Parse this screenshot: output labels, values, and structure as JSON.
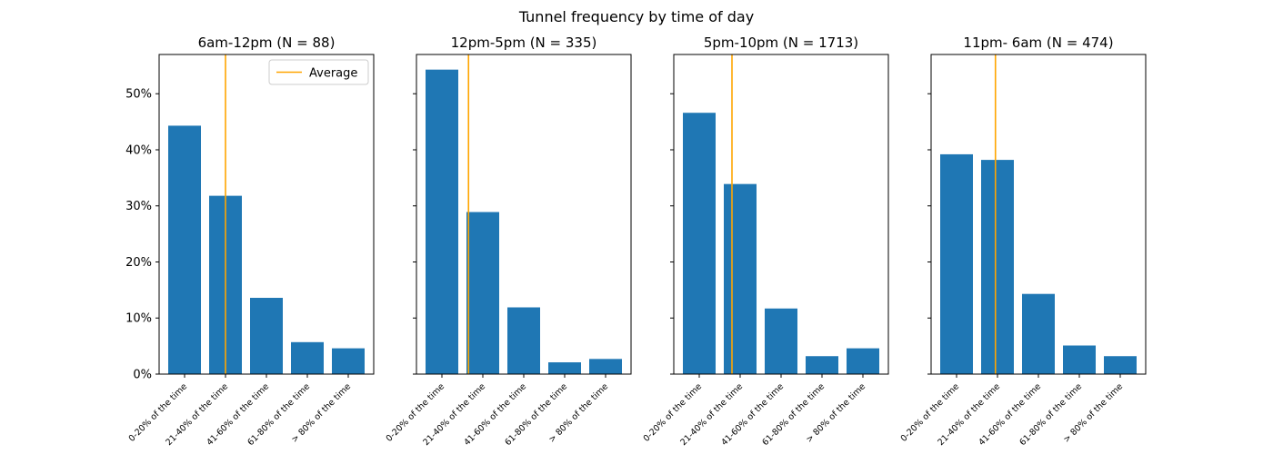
{
  "figure": {
    "suptitle": "Tunnel frequency by time of day",
    "legend_label": "Average",
    "bar_color": "#1f77b4",
    "average_color": "#ffa500"
  },
  "chart_data": [
    {
      "type": "bar",
      "title": "6am-12pm (N = 88)",
      "categories": [
        "0-20% of the time",
        "21-40% of the time",
        "41-60% of the time",
        "61-80% of the time",
        "> 80% of the time"
      ],
      "values": [
        44.3,
        31.8,
        13.6,
        5.7,
        4.6
      ],
      "average_x": 1.0,
      "ylim": [
        0,
        57
      ],
      "yticks": [
        0,
        10,
        20,
        30,
        40,
        50
      ],
      "ytick_labels": [
        "0%",
        "10%",
        "20%",
        "30%",
        "40%",
        "50%"
      ],
      "legend": "top-right"
    },
    {
      "type": "bar",
      "title": "12pm-5pm (N = 335)",
      "categories": [
        "0-20% of the time",
        "21-40% of the time",
        "41-60% of the time",
        "61-80% of the time",
        "> 80% of the time"
      ],
      "values": [
        54.3,
        28.9,
        11.9,
        2.1,
        2.7
      ],
      "average_x": 0.65,
      "ylim": [
        0,
        57
      ]
    },
    {
      "type": "bar",
      "title": "5pm-10pm (N = 1713)",
      "categories": [
        "0-20% of the time",
        "21-40% of the time",
        "41-60% of the time",
        "61-80% of the time",
        "> 80% of the time"
      ],
      "values": [
        46.6,
        33.9,
        11.7,
        3.2,
        4.6
      ],
      "average_x": 0.8,
      "ylim": [
        0,
        57
      ]
    },
    {
      "type": "bar",
      "title": "11pm- 6am (N = 474)",
      "categories": [
        "0-20% of the time",
        "21-40% of the time",
        "41-60% of the time",
        "61-80% of the time",
        "> 80% of the time"
      ],
      "values": [
        39.2,
        38.2,
        14.3,
        5.1,
        3.2
      ],
      "average_x": 0.95,
      "ylim": [
        0,
        57
      ]
    }
  ]
}
